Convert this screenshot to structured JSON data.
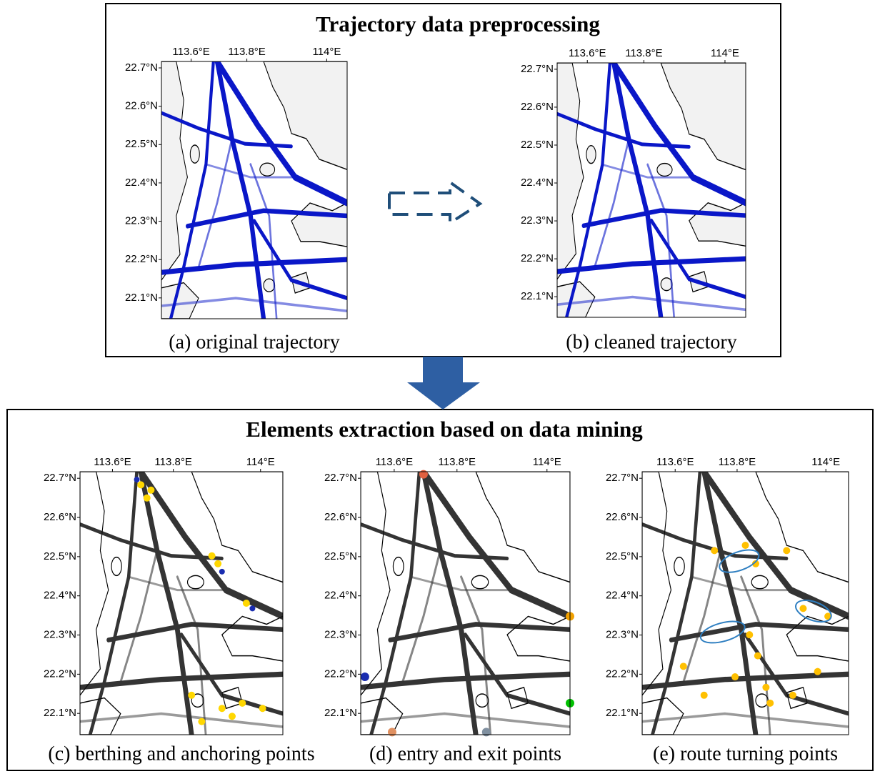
{
  "top": {
    "title": "Trajectory data preprocessing",
    "panels": [
      {
        "caption": "(a) original trajectory",
        "lon_ticks": [
          "113.6°E",
          "113.8°E",
          "114°E"
        ],
        "lat_ticks": [
          "22.7°N",
          "22.6°N",
          "22.5°N",
          "22.4°N",
          "22.3°N",
          "22.2°N",
          "22.1°N"
        ]
      },
      {
        "caption": "(b) cleaned trajectory",
        "lon_ticks": [
          "113.6°E",
          "113.8°E",
          "114°E"
        ],
        "lat_ticks": [
          "22.7°N",
          "22.6°N",
          "22.5°N",
          "22.4°N",
          "22.3°N",
          "22.2°N",
          "22.1°N"
        ]
      }
    ]
  },
  "bottom": {
    "title": "Elements extraction based on data mining",
    "panels": [
      {
        "caption": "(c) berthing and anchoring points",
        "lon_ticks": [
          "113.6°E",
          "113.8°E",
          "114°E"
        ],
        "lat_ticks": [
          "22.7°N",
          "22.6°N",
          "22.5°N",
          "22.4°N",
          "22.3°N",
          "22.2°N",
          "22.1°N"
        ]
      },
      {
        "caption": "(d) entry and exit points",
        "lon_ticks": [
          "113.6°E",
          "113.8°E",
          "114°E"
        ],
        "lat_ticks": [
          "22.7°N",
          "22.6°N",
          "22.5°N",
          "22.4°N",
          "22.3°N",
          "22.2°N",
          "22.1°N"
        ]
      },
      {
        "caption": "(e) route turning points",
        "lon_ticks": [
          "113.6°E",
          "113.8°E",
          "114°E"
        ],
        "lat_ticks": [
          "22.7°N",
          "22.6°N",
          "22.5°N",
          "22.4°N",
          "22.3°N",
          "22.2°N",
          "22.1°N"
        ]
      }
    ]
  }
}
